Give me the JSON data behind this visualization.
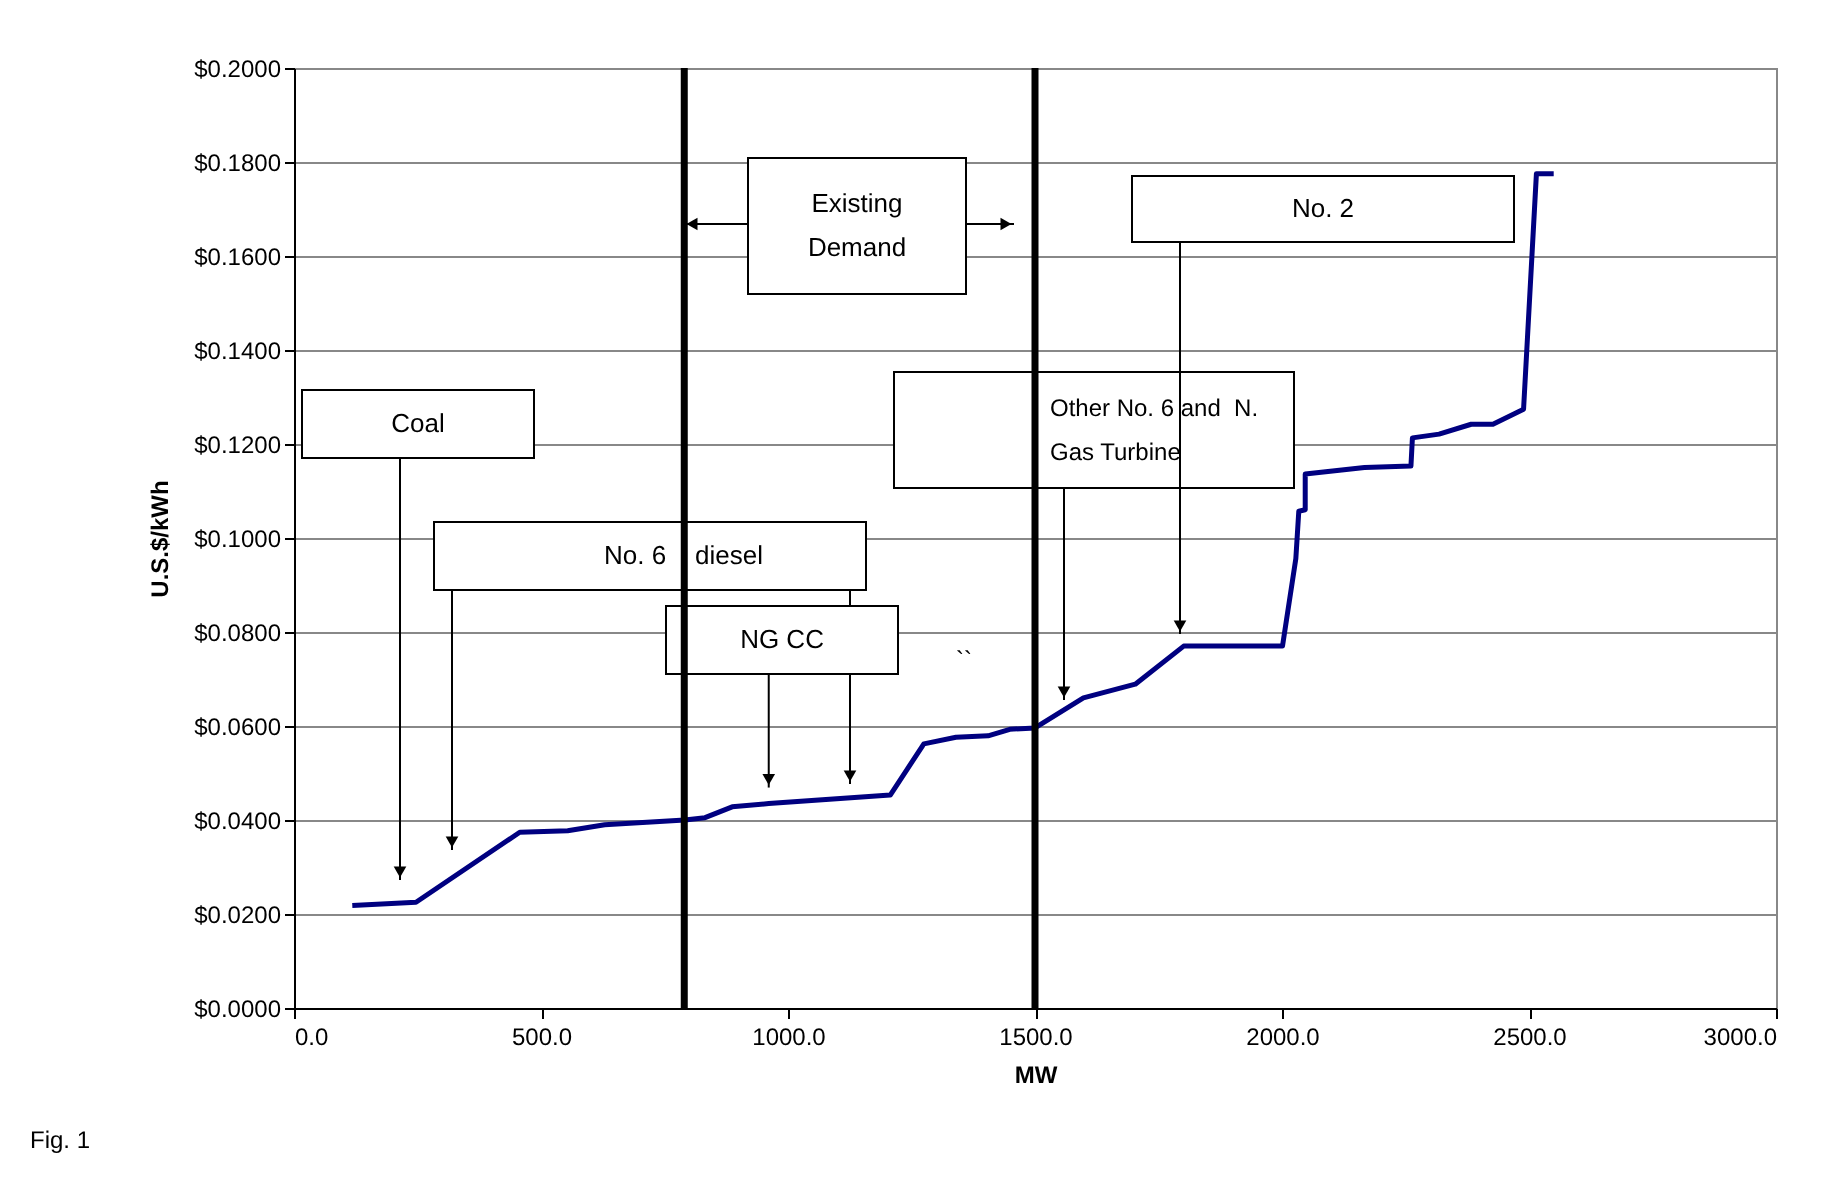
{
  "chart_data": {
    "type": "line",
    "xlabel": "MW",
    "ylabel": "U.S.$/kWh",
    "x": [
      118,
      247,
      457,
      554,
      629,
      791,
      832,
      887,
      961,
      1207,
      1275,
      1340,
      1405,
      1449,
      1500,
      1598,
      1703,
      1801,
      2001,
      2028,
      2034,
      2047,
      2047,
      2167,
      2261,
      2264,
      2318,
      2383,
      2427,
      2489,
      2515,
      2550
    ],
    "series": [
      {
        "color": "#000080",
        "values": [
          0.0218,
          0.0225,
          0.0374,
          0.0377,
          0.039,
          0.04,
          0.0405,
          0.0428,
          0.0435,
          0.0453,
          0.0562,
          0.0576,
          0.0579,
          0.0593,
          0.0596,
          0.066,
          0.0689,
          0.077,
          0.077,
          0.0956,
          0.1057,
          0.106,
          0.1136,
          0.115,
          0.1153,
          0.1213,
          0.1221,
          0.1242,
          0.1242,
          0.1274,
          0.1775,
          0.1775
        ]
      }
    ],
    "xlim": [
      0,
      3000
    ],
    "xticks": [
      {
        "value": 0,
        "label": "0.0"
      },
      {
        "value": 500,
        "label": "500.0"
      },
      {
        "value": 1000,
        "label": "1000.0"
      },
      {
        "value": 1500,
        "label": "1500.0"
      },
      {
        "value": 2000,
        "label": "2000.0"
      },
      {
        "value": 2500,
        "label": "2500.0"
      },
      {
        "value": 3000,
        "label": "3000.0"
      }
    ],
    "ylim": [
      0,
      0.2
    ],
    "yticks": [
      {
        "value": 0,
        "label": "$0.0000"
      },
      {
        "value": 0.02,
        "label": "$0.0200"
      },
      {
        "value": 0.04,
        "label": "$0.0400"
      },
      {
        "value": 0.06,
        "label": "$0.0600"
      },
      {
        "value": 0.08,
        "label": "$0.0800"
      },
      {
        "value": 0.1,
        "label": "$0.1000"
      },
      {
        "value": 0.12,
        "label": "$0.1200"
      },
      {
        "value": 0.14,
        "label": "$0.1400"
      },
      {
        "value": 0.16,
        "label": "$0.1600"
      },
      {
        "value": 0.18,
        "label": "$0.1800"
      },
      {
        "value": 0.2,
        "label": "$0.2000"
      }
    ],
    "grid": "y",
    "marker": "none",
    "line_style": "solid",
    "ref_lines": [
      {
        "axis": "x",
        "value": 790,
        "color": "#000000"
      },
      {
        "axis": "x",
        "value": 1500,
        "color": "#000000"
      }
    ],
    "annotations": [
      "Coal",
      "No. 6    diesel",
      {
        "text": "NG CC",
        "x": 961,
        "y": 0.0435
      },
      "``",
      "Existing Demand",
      "Other No. 6 and  N. Gas Turbine",
      "No. 2",
      "Fig. 1"
    ]
  }
}
